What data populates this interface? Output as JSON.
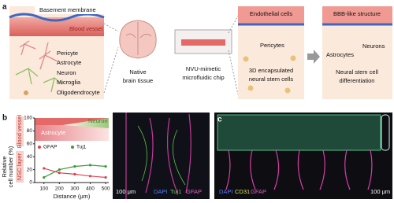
{
  "panel_a": {
    "label": "a",
    "tissue": {
      "membrane": "Basement membrane",
      "vessel": "Blood vessel",
      "cells": [
        "Pericyte",
        "Astrocyte",
        "Neuron",
        "Microglia",
        "Oligodendrocyte"
      ]
    },
    "brain": [
      "Native",
      "brain tissue"
    ],
    "chip": [
      "NVU-mimetic",
      "microfluidic chip"
    ],
    "seeding": {
      "endothelial": "Endothelial cells",
      "pericytes": "Pericytes",
      "nsc": [
        "3D encapsulated",
        "neural stem cells"
      ]
    },
    "result": {
      "title": "BBB-like structure",
      "astrocytes": "Astrocytes",
      "neurons": "Neurons",
      "differentiation": [
        "Neural stem cell",
        "differentiation"
      ]
    }
  },
  "panel_b": {
    "label": "b",
    "vessel": "Blood vessel",
    "nsc": "NSC layer",
    "astrocyte": "Astrocyte",
    "neuron": "Neuron",
    "image": {
      "scale": "100 μm",
      "stains": [
        "DAPI",
        "Tuj1",
        "GFAP"
      ]
    }
  },
  "panel_c": {
    "label": "c",
    "stains": [
      "DAPI",
      "CD31",
      "GFAP"
    ],
    "scale": "100 μm"
  },
  "chart_data": {
    "type": "line",
    "x": [
      100,
      200,
      300,
      400,
      500
    ],
    "series": [
      {
        "name": "GFAP",
        "color": "#e0404f",
        "values": [
          22,
          15,
          13,
          10,
          8
        ]
      },
      {
        "name": "Tuj1",
        "color": "#3f9a3a",
        "values": [
          8,
          20,
          25,
          27,
          25
        ]
      }
    ],
    "xlim": [
      40,
      520
    ],
    "ylim": [
      0,
      100
    ],
    "xticks": [
      100,
      200,
      300,
      400,
      500
    ],
    "yticks": [
      0,
      20,
      40,
      60,
      80,
      100
    ],
    "xlabel": "Distance (μm)",
    "ylabel": [
      "Relative",
      "cell number (%)"
    ]
  }
}
